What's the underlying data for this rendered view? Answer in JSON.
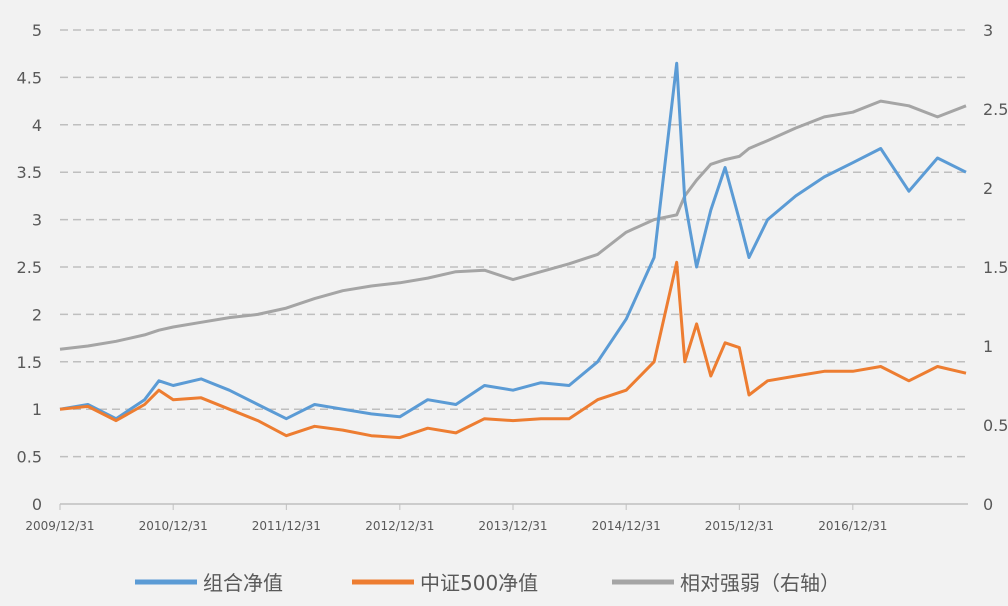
{
  "chart_data": {
    "type": "line",
    "title": "",
    "xlabel": "",
    "ylabel": "",
    "x_tick_labels": [
      "2009/12/31",
      "2010/12/31",
      "2011/12/31",
      "2012/12/31",
      "2013/12/31",
      "2014/12/31",
      "2015/12/31",
      "2016/12/31"
    ],
    "y_left": {
      "lim": [
        0,
        5
      ],
      "ticks": [
        "0",
        "0.5",
        "1",
        "1.5",
        "2",
        "2.5",
        "3",
        "3.5",
        "4",
        "4.5",
        "5"
      ]
    },
    "y_right": {
      "lim": [
        0,
        3
      ],
      "ticks": [
        "0",
        "0.5",
        "1",
        "1.5",
        "2",
        "2.5",
        "3"
      ]
    },
    "grid": "horizontal dashed",
    "legend_position": "bottom",
    "series": [
      {
        "name": "组合净值",
        "axis": "left",
        "color": "#5b9bd5",
        "x": [
          "2009/12/31",
          "2010/03/31",
          "2010/06/30",
          "2010/09/30",
          "2010/11/15",
          "2010/12/31",
          "2011/03/31",
          "2011/06/30",
          "2011/09/30",
          "2011/12/31",
          "2012/03/31",
          "2012/06/30",
          "2012/09/30",
          "2012/12/31",
          "2013/03/31",
          "2013/06/30",
          "2013/09/30",
          "2013/12/31",
          "2014/03/31",
          "2014/06/30",
          "2014/09/30",
          "2014/12/31",
          "2015/03/31",
          "2015/06/12",
          "2015/07/08",
          "2015/08/15",
          "2015/09/30",
          "2015/11/15",
          "2015/12/31",
          "2016/01/31",
          "2016/03/31",
          "2016/06/30",
          "2016/09/30",
          "2016/12/31",
          "2017/03/31",
          "2017/06/30",
          "2017/09/30",
          "2017/12/31"
        ],
        "values": [
          1.0,
          1.05,
          0.9,
          1.1,
          1.3,
          1.25,
          1.32,
          1.2,
          1.05,
          0.9,
          1.05,
          1.0,
          0.95,
          0.92,
          1.1,
          1.05,
          1.25,
          1.2,
          1.28,
          1.25,
          1.5,
          1.95,
          2.6,
          4.65,
          3.2,
          2.5,
          3.1,
          3.55,
          3.0,
          2.6,
          3.0,
          3.25,
          3.45,
          3.6,
          3.75,
          3.3,
          3.65,
          3.5
        ]
      },
      {
        "name": "中证500净值",
        "axis": "left",
        "color": "#ed7d31",
        "x": [
          "2009/12/31",
          "2010/03/31",
          "2010/06/30",
          "2010/09/30",
          "2010/11/15",
          "2010/12/31",
          "2011/03/31",
          "2011/06/30",
          "2011/09/30",
          "2011/12/31",
          "2012/03/31",
          "2012/06/30",
          "2012/09/30",
          "2012/12/31",
          "2013/03/31",
          "2013/06/30",
          "2013/09/30",
          "2013/12/31",
          "2014/03/31",
          "2014/06/30",
          "2014/09/30",
          "2014/12/31",
          "2015/03/31",
          "2015/06/12",
          "2015/07/08",
          "2015/08/15",
          "2015/09/30",
          "2015/11/15",
          "2015/12/31",
          "2016/01/31",
          "2016/03/31",
          "2016/06/30",
          "2016/09/30",
          "2016/12/31",
          "2017/03/31",
          "2017/06/30",
          "2017/09/30",
          "2017/12/31"
        ],
        "values": [
          1.0,
          1.03,
          0.88,
          1.05,
          1.2,
          1.1,
          1.12,
          1.0,
          0.88,
          0.72,
          0.82,
          0.78,
          0.72,
          0.7,
          0.8,
          0.75,
          0.9,
          0.88,
          0.9,
          0.9,
          1.1,
          1.2,
          1.5,
          2.55,
          1.5,
          1.9,
          1.35,
          1.7,
          1.65,
          1.15,
          1.3,
          1.35,
          1.4,
          1.4,
          1.45,
          1.3,
          1.45,
          1.38
        ]
      },
      {
        "name": "相对强弱（右轴）",
        "axis": "right",
        "color": "#a5a5a5",
        "x": [
          "2009/12/31",
          "2010/03/31",
          "2010/06/30",
          "2010/09/30",
          "2010/11/15",
          "2010/12/31",
          "2011/03/31",
          "2011/06/30",
          "2011/09/30",
          "2011/12/31",
          "2012/03/31",
          "2012/06/30",
          "2012/09/30",
          "2012/12/31",
          "2013/03/31",
          "2013/06/30",
          "2013/09/30",
          "2013/12/31",
          "2014/03/31",
          "2014/06/30",
          "2014/09/30",
          "2014/12/31",
          "2015/03/31",
          "2015/06/12",
          "2015/07/08",
          "2015/08/15",
          "2015/09/30",
          "2015/11/15",
          "2015/12/31",
          "2016/01/31",
          "2016/03/31",
          "2016/06/30",
          "2016/09/30",
          "2016/12/31",
          "2017/03/31",
          "2017/06/30",
          "2017/09/30",
          "2017/12/31"
        ],
        "values": [
          0.98,
          1.0,
          1.03,
          1.07,
          1.1,
          1.12,
          1.15,
          1.18,
          1.2,
          1.24,
          1.3,
          1.35,
          1.38,
          1.4,
          1.43,
          1.47,
          1.48,
          1.42,
          1.47,
          1.52,
          1.58,
          1.72,
          1.8,
          1.83,
          1.95,
          2.05,
          2.15,
          2.18,
          2.2,
          2.25,
          2.3,
          2.38,
          2.45,
          2.48,
          2.55,
          2.52,
          2.45,
          2.52
        ]
      }
    ]
  }
}
